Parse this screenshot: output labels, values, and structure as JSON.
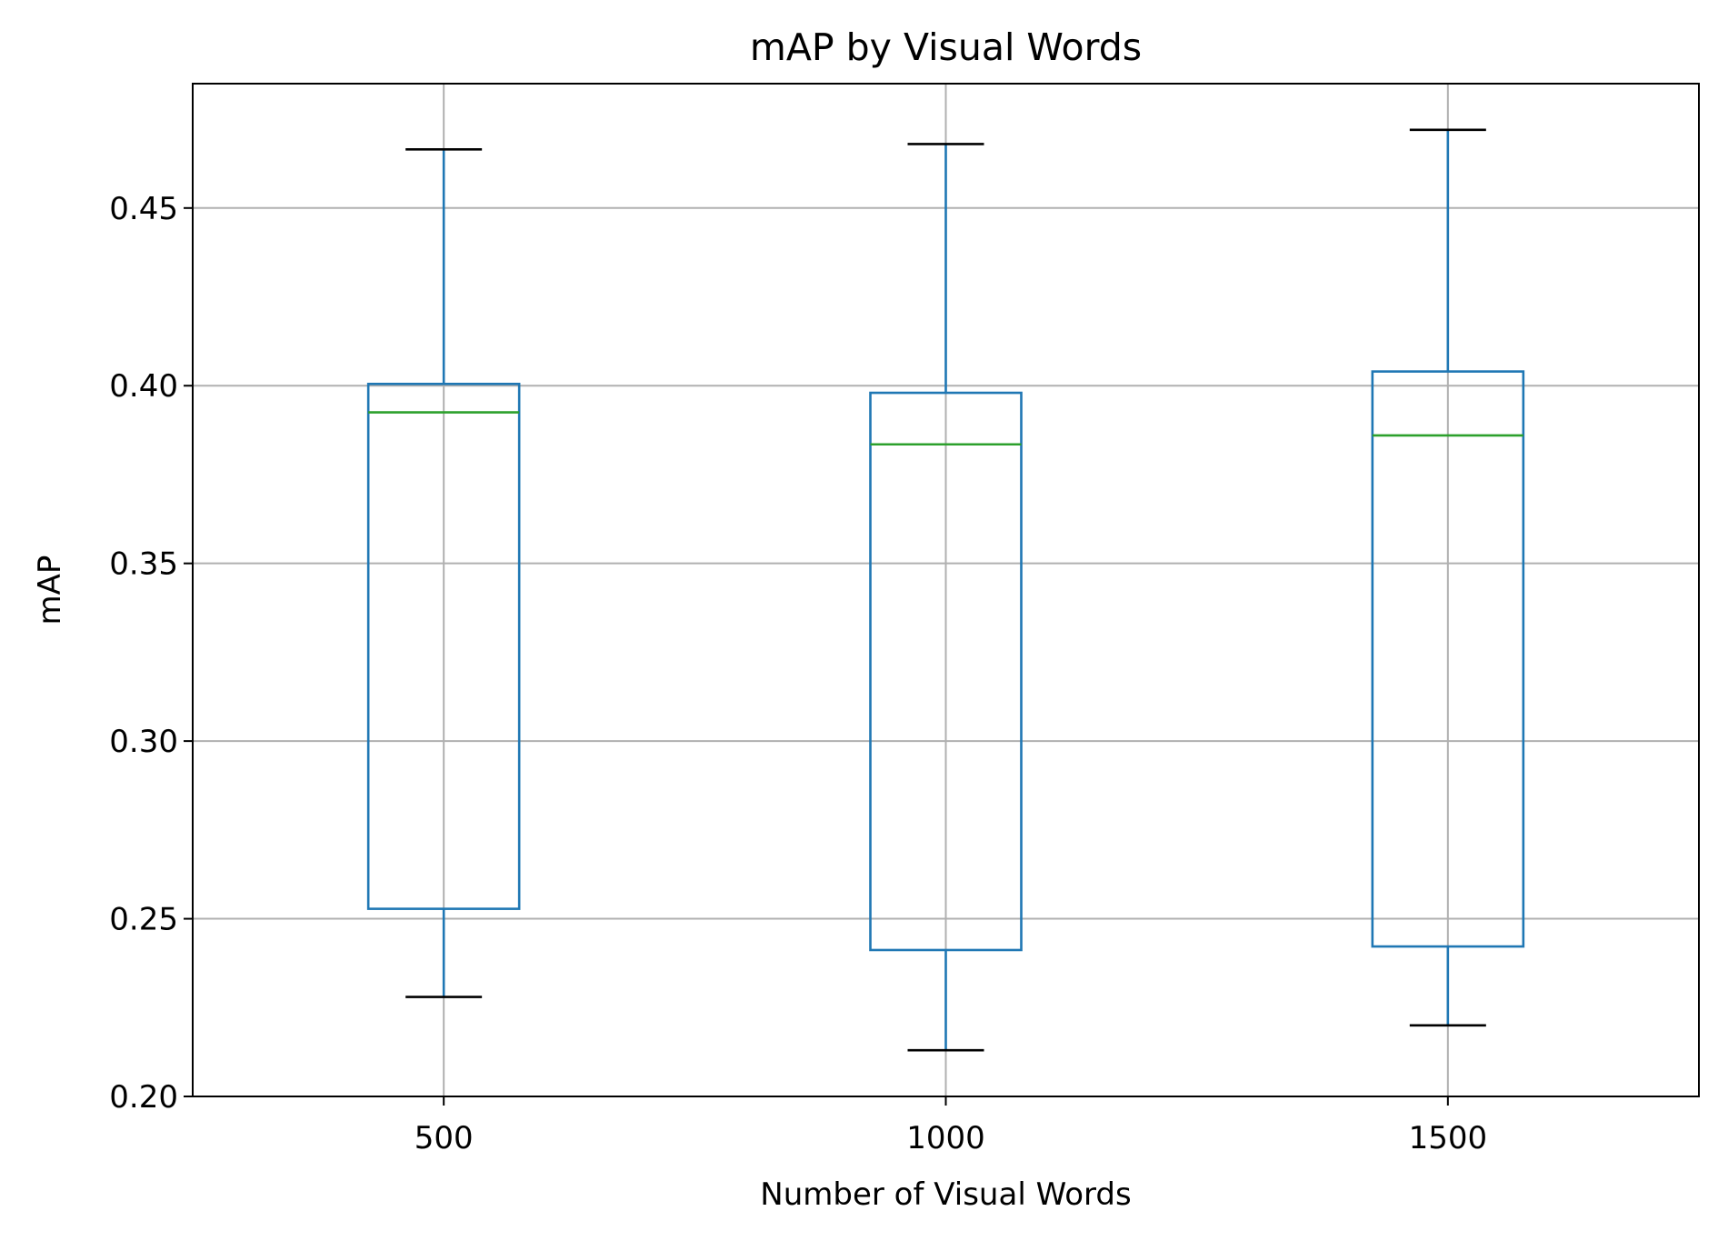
{
  "chart_data": {
    "type": "box",
    "title": "mAP by Visual Words",
    "xlabel": "Number of Visual Words",
    "ylabel": "mAP",
    "categories": [
      "500",
      "1000",
      "1500"
    ],
    "boxes": [
      {
        "category": "500",
        "whisker_low": 0.228,
        "q1": 0.2528,
        "median": 0.3925,
        "q3": 0.4005,
        "whisker_high": 0.4665
      },
      {
        "category": "1000",
        "whisker_low": 0.213,
        "q1": 0.2412,
        "median": 0.3835,
        "q3": 0.398,
        "whisker_high": 0.468
      },
      {
        "category": "1500",
        "whisker_low": 0.22,
        "q1": 0.2422,
        "median": 0.386,
        "q3": 0.404,
        "whisker_high": 0.472
      }
    ],
    "ylim": [
      0.2,
      0.485
    ],
    "yticks": [
      "0.20",
      "0.25",
      "0.30",
      "0.35",
      "0.40",
      "0.45"
    ],
    "grid": true,
    "legend": "none",
    "colors": {
      "box": "#1f77b4",
      "median": "#2ca02c",
      "whisker_cap": "#000000",
      "grid": "#b0b0b0",
      "axes": "#000000"
    }
  }
}
